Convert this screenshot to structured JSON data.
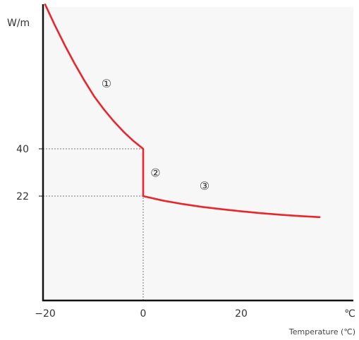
{
  "chart_data": {
    "type": "line",
    "ylabel": "W/m",
    "xunit": "℃",
    "xlabel": "Temperature (℃)",
    "xlim": [
      -20,
      36
    ],
    "ylim": [
      0,
      102
    ],
    "x_ticks": [
      {
        "value": -20,
        "label": "−20"
      },
      {
        "value": 0,
        "label": "0"
      },
      {
        "value": 20,
        "label": "20"
      }
    ],
    "y_ticks": [
      {
        "value": 40,
        "label": "40"
      },
      {
        "value": 22,
        "label": "22"
      }
    ],
    "grid": false,
    "background": "#f7f7f7",
    "series": [
      {
        "color": "#e8262d",
        "points": [
          [
            -20,
            95
          ],
          [
            -18,
            87
          ],
          [
            -16,
            79.5
          ],
          [
            -14,
            72.5
          ],
          [
            -12,
            66
          ],
          [
            -10,
            60
          ],
          [
            -8,
            55
          ],
          [
            -6,
            50.5
          ],
          [
            -4,
            46.5
          ],
          [
            -2,
            43
          ],
          [
            0,
            40
          ],
          [
            0,
            22
          ],
          [
            4,
            20.3
          ],
          [
            8,
            19
          ],
          [
            12,
            17.9
          ],
          [
            16,
            17
          ],
          [
            20,
            16.2
          ],
          [
            24,
            15.5
          ],
          [
            28,
            14.9
          ],
          [
            32,
            14.4
          ],
          [
            36,
            14
          ]
        ]
      }
    ],
    "reference_lines": [
      {
        "x": 0,
        "from_y": 0,
        "to_y": 22
      },
      {
        "y": 40,
        "from_x": -20,
        "to_x": 0
      },
      {
        "y": 22,
        "from_x": -20,
        "to_x": 0
      }
    ],
    "annotations": [
      {
        "text": "①",
        "x": -7.5,
        "y": 65
      },
      {
        "text": "②",
        "x": 2.5,
        "y": 31
      },
      {
        "text": "③",
        "x": 12.5,
        "y": 26
      }
    ]
  }
}
